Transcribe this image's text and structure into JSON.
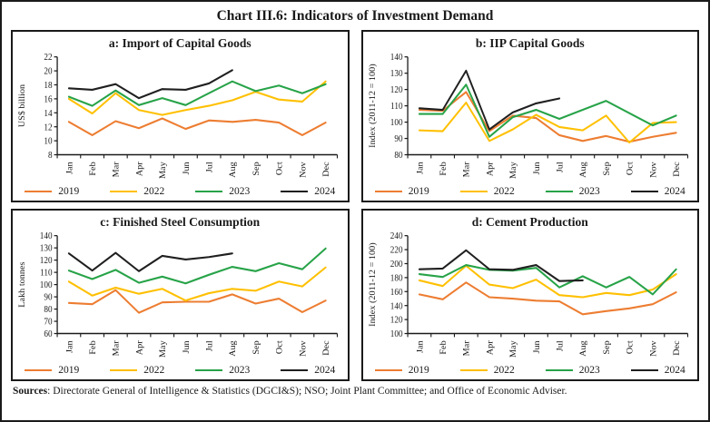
{
  "page_title": "Chart III.6: Indicators of Investment Demand",
  "footer": {
    "bold": "Sources",
    "rest": ": Directorate General of Intelligence & Statistics (DGCI&S); NSO; Joint Plant Committee; and Office of Economic Adviser."
  },
  "colors": {
    "y2019": "#ED7D31",
    "y2022": "#FFC000",
    "y2023": "#27A348",
    "y2024": "#1F1F1F",
    "axis": "#1a1a1a"
  },
  "chart_data": [
    {
      "id": "a",
      "type": "line",
      "title": "a: Import of Capital Goods",
      "ylabel": "US$ billion",
      "ylim": [
        8,
        22
      ],
      "ytick_step": 2,
      "grid": false,
      "legend_position": "bottom",
      "categories": [
        "Jan",
        "Feb",
        "Mar",
        "Apr",
        "May",
        "Jun",
        "Jul",
        "Aug",
        "Sep",
        "Oct",
        "Nov",
        "Dec"
      ],
      "series": [
        {
          "name": "2019",
          "color": "#ED7D31",
          "values": [
            12.7,
            10.8,
            12.8,
            11.8,
            13.2,
            11.7,
            12.9,
            12.7,
            13.0,
            12.6,
            10.8,
            12.6
          ]
        },
        {
          "name": "2022",
          "color": "#FFC000",
          "values": [
            16.0,
            13.9,
            16.8,
            14.4,
            13.7,
            14.4,
            15.0,
            15.8,
            17.0,
            15.9,
            15.6,
            18.5
          ]
        },
        {
          "name": "2023",
          "color": "#27A348",
          "values": [
            16.3,
            15.0,
            17.2,
            15.1,
            16.1,
            15.1,
            16.8,
            18.5,
            17.1,
            17.9,
            16.8,
            18.1
          ]
        },
        {
          "name": "2024",
          "color": "#1F1F1F",
          "values": [
            17.5,
            17.3,
            18.1,
            16.1,
            17.4,
            17.3,
            18.2,
            20.1
          ]
        }
      ]
    },
    {
      "id": "b",
      "type": "line",
      "title": "b: IIP Capital Goods",
      "ylabel": "Index (2011-12 = 100)",
      "ylim": [
        80,
        140
      ],
      "ytick_step": 10,
      "grid": false,
      "legend_position": "bottom",
      "categories": [
        "Jan",
        "Feb",
        "Mar",
        "Apr",
        "May",
        "Jun",
        "Jul",
        "Aug",
        "Sep",
        "Oct",
        "Nov",
        "Dec"
      ],
      "series": [
        {
          "name": "2019",
          "color": "#ED7D31",
          "values": [
            107.5,
            107.0,
            118.5,
            94.5,
            104.0,
            102.5,
            92.0,
            88.5,
            91.5,
            88.0,
            91.0,
            93.5
          ]
        },
        {
          "name": "2022",
          "color": "#FFC000",
          "values": [
            95.0,
            94.5,
            112.0,
            88.5,
            95.5,
            104.5,
            97.0,
            95.0,
            104.0,
            87.5,
            99.5,
            100.0
          ]
        },
        {
          "name": "2023",
          "color": "#27A348",
          "values": [
            105.0,
            105.0,
            123.0,
            91.0,
            103.0,
            107.5,
            102.0,
            107.5,
            113.0,
            105.5,
            98.0,
            104.0
          ]
        },
        {
          "name": "2024",
          "color": "#1F1F1F",
          "values": [
            108.5,
            107.5,
            131.5,
            95.5,
            106.0,
            111.5,
            114.5
          ]
        }
      ]
    },
    {
      "id": "c",
      "type": "line",
      "title": "c: Finished Steel Consumption",
      "ylabel": "Lakh tonnes",
      "ylim": [
        60,
        140
      ],
      "ytick_step": 10,
      "grid": false,
      "legend_position": "bottom",
      "categories": [
        "Jan",
        "Feb",
        "Mar",
        "Apr",
        "May",
        "Jun",
        "Jul",
        "Aug",
        "Sep",
        "Oct",
        "Nov",
        "Dec"
      ],
      "series": [
        {
          "name": "2019",
          "color": "#ED7D31",
          "values": [
            85.0,
            84.0,
            95.5,
            77.0,
            85.5,
            86.0,
            86.0,
            92.0,
            84.5,
            88.5,
            77.5,
            87.0
          ]
        },
        {
          "name": "2022",
          "color": "#FFC000",
          "values": [
            102.5,
            91.0,
            97.5,
            92.5,
            96.5,
            87.0,
            93.0,
            96.5,
            95.0,
            102.5,
            98.5,
            114.0
          ]
        },
        {
          "name": "2023",
          "color": "#27A348",
          "values": [
            111.5,
            104.5,
            112.0,
            101.5,
            106.5,
            101.0,
            108.0,
            114.5,
            111.0,
            117.5,
            112.5,
            129.5
          ]
        },
        {
          "name": "2024",
          "color": "#1F1F1F",
          "values": [
            125.5,
            111.5,
            126.0,
            111.0,
            123.5,
            120.5,
            122.5,
            125.5
          ]
        }
      ]
    },
    {
      "id": "d",
      "type": "line",
      "title": "d: Cement Production",
      "ylabel": "Index (2011-12 = 100)",
      "ylim": [
        100,
        240
      ],
      "ytick_step": 20,
      "grid": false,
      "legend_position": "bottom",
      "categories": [
        "Jan",
        "Feb",
        "Mar",
        "Apr",
        "May",
        "Jun",
        "Jul",
        "Aug",
        "Sep",
        "Oct",
        "Nov",
        "Dec"
      ],
      "series": [
        {
          "name": "2019",
          "color": "#ED7D31",
          "values": [
            156,
            149,
            173,
            152,
            150,
            147,
            146,
            127.5,
            132,
            136,
            142,
            159
          ]
        },
        {
          "name": "2022",
          "color": "#FFC000",
          "values": [
            176,
            168,
            197,
            170,
            165,
            177,
            155,
            152,
            158,
            155,
            163,
            185
          ]
        },
        {
          "name": "2023",
          "color": "#27A348",
          "values": [
            185,
            181,
            198,
            191,
            190,
            194,
            166,
            182,
            166,
            181,
            156,
            192
          ]
        },
        {
          "name": "2024",
          "color": "#1F1F1F",
          "values": [
            192,
            193,
            219,
            192,
            191,
            198,
            175,
            176
          ]
        }
      ]
    }
  ]
}
